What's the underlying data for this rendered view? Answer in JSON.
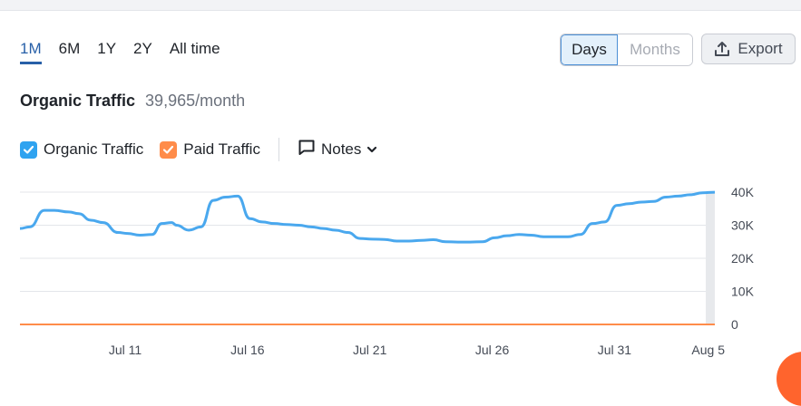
{
  "range_tabs": [
    {
      "label": "1M",
      "active": true
    },
    {
      "label": "6M",
      "active": false
    },
    {
      "label": "1Y",
      "active": false
    },
    {
      "label": "2Y",
      "active": false
    },
    {
      "label": "All time",
      "active": false
    }
  ],
  "granularity": {
    "days": "Days",
    "months": "Months",
    "selected": "Days"
  },
  "export_label": "Export",
  "metric": {
    "title": "Organic Traffic",
    "value": "39,965/month"
  },
  "legend": {
    "organic": {
      "label": "Organic Traffic",
      "color": "#2fa3f0",
      "checked": true
    },
    "paid": {
      "label": "Paid Traffic",
      "color": "#ff8c4a",
      "checked": true
    },
    "notes": "Notes"
  },
  "chart_data": {
    "type": "line",
    "x_ticks": [
      "Jul 11",
      "Jul 16",
      "Jul 21",
      "Jul 26",
      "Jul 31",
      "Aug 5"
    ],
    "y_ticks": [
      "40K",
      "30K",
      "20K",
      "10K",
      "0"
    ],
    "ylim": [
      0,
      40000
    ],
    "grid": true,
    "series": [
      {
        "name": "Organic Traffic",
        "color": "#4aa8ee",
        "x": [
          6.6,
          7,
          7.6,
          8,
          8.6,
          9,
          9.5,
          10,
          10.6,
          11,
          11.5,
          12,
          12.4,
          12.8,
          13,
          13.5,
          14,
          14.5,
          15,
          15.5,
          16,
          16.5,
          17,
          17.5,
          18,
          18.5,
          19,
          19.5,
          20,
          20.5,
          21,
          21.5,
          22,
          22.5,
          23,
          23.5,
          24,
          24.5,
          25,
          25.5,
          26,
          26.5,
          27,
          27.5,
          28,
          28.5,
          29,
          29.5,
          30,
          30.5,
          31,
          31.5,
          32,
          32.5,
          33,
          33.5,
          34,
          34.5,
          35
        ],
        "values": [
          29000,
          29500,
          34500,
          34500,
          34000,
          33500,
          31500,
          30800,
          27800,
          27500,
          27000,
          27200,
          30500,
          30800,
          30000,
          28500,
          29500,
          37500,
          38500,
          38800,
          32000,
          31000,
          30500,
          30200,
          30000,
          29500,
          29000,
          28500,
          27800,
          26000,
          25800,
          25700,
          25200,
          25200,
          25400,
          25600,
          25000,
          24900,
          24900,
          25000,
          26200,
          26800,
          27200,
          27000,
          26500,
          26500,
          26500,
          27200,
          30500,
          31000,
          36000,
          36500,
          37000,
          37200,
          38500,
          38800,
          39200,
          39800,
          39965
        ]
      },
      {
        "name": "Paid Traffic",
        "color": "#ff8c4a",
        "x": [
          6.6,
          35
        ],
        "values": [
          0,
          0
        ]
      }
    ]
  }
}
